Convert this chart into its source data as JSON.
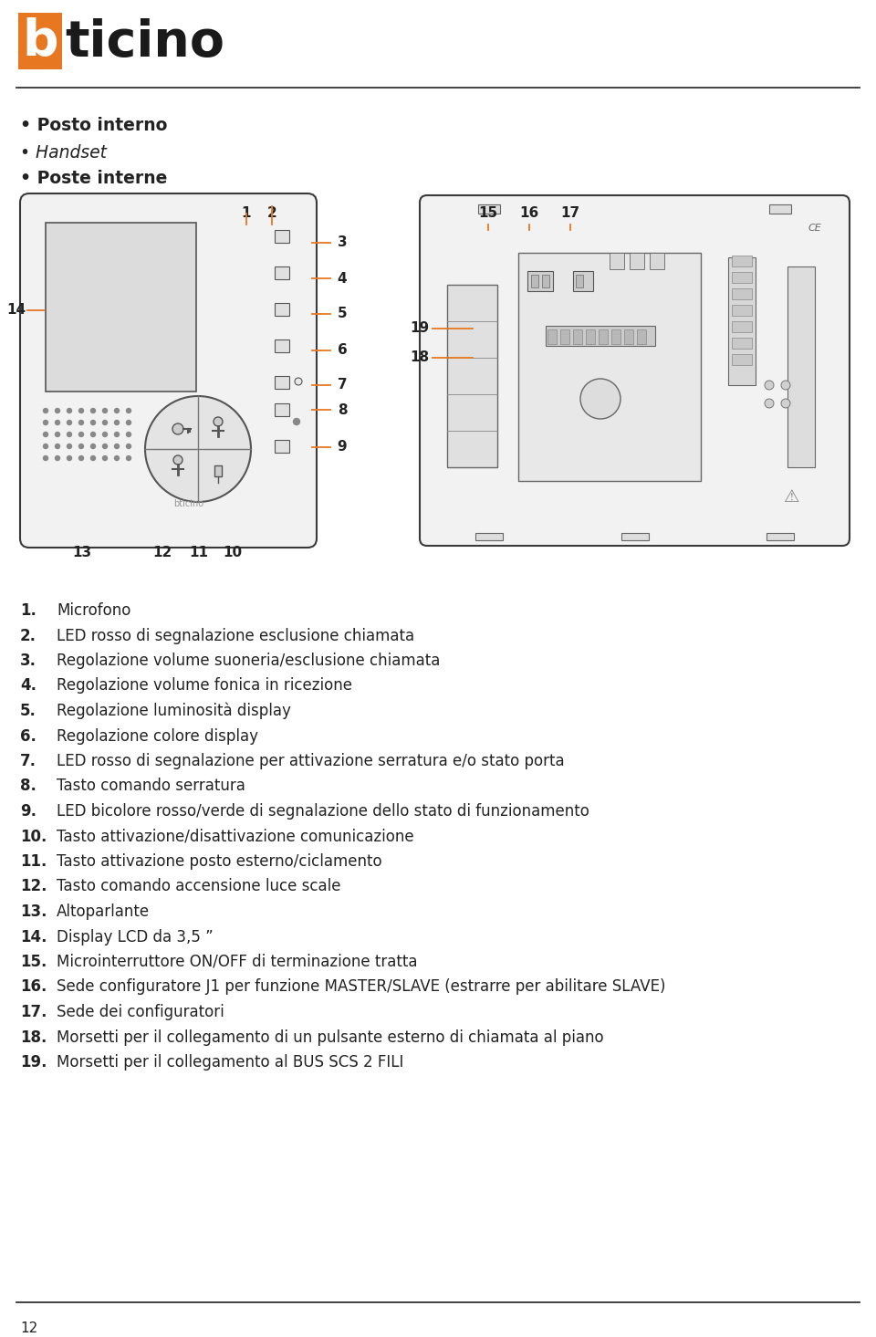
{
  "numbered_items": [
    {
      "num": "1.",
      "text": "Microfono"
    },
    {
      "num": "2.",
      "text": "LED rosso di segnalazione esclusione chiamata"
    },
    {
      "num": "3.",
      "text": "Regolazione volume suoneria/esclusione chiamata"
    },
    {
      "num": "4.",
      "text": "Regolazione volume fonica in ricezione"
    },
    {
      "num": "5.",
      "text": "Regolazione luminosità display"
    },
    {
      "num": "6.",
      "text": "Regolazione colore display"
    },
    {
      "num": "7.",
      "text": "LED rosso di segnalazione per attivazione serratura e/o stato porta"
    },
    {
      "num": "8.",
      "text": "Tasto comando serratura"
    },
    {
      "num": "9.",
      "text": "LED bicolore rosso/verde di segnalazione dello stato di funzionamento"
    },
    {
      "num": "10.",
      "text": "Tasto attivazione/disattivazione comunicazione"
    },
    {
      "num": "11.",
      "text": "Tasto attivazione posto esterno/ciclamento"
    },
    {
      "num": "12.",
      "text": "Tasto comando accensione luce scale"
    },
    {
      "num": "13.",
      "text": "Altoparlante"
    },
    {
      "num": "14.",
      "text": "Display LCD da 3,5 ”"
    },
    {
      "num": "15.",
      "text": "Microinterruttore ON/OFF di terminazione tratta"
    },
    {
      "num": "16.",
      "text": "Sede configuratore J1 per funzione MASTER/SLAVE (estrarre per abilitare SLAVE)"
    },
    {
      "num": "17.",
      "text": "Sede dei configuratori"
    },
    {
      "num": "18.",
      "text": "Morsetti per il collegamento di un pulsante esterno di chiamata al piano"
    },
    {
      "num": "19.",
      "text": "Morsetti per il collegamento al BUS SCS 2 FILI"
    }
  ],
  "orange": "#E87722",
  "dark": "#222222",
  "gray": "#888888",
  "lightgray": "#cccccc",
  "bg": "#ffffff"
}
